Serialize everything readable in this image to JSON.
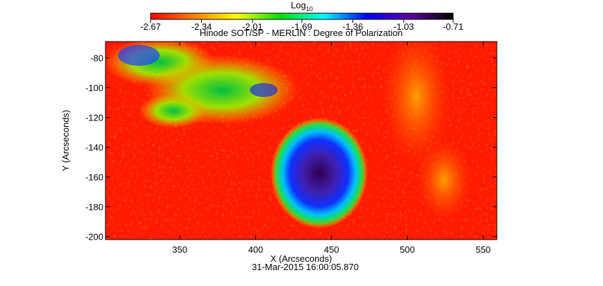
{
  "chart_data": {
    "type": "image",
    "title": "Hinode SOT/SP - MERLIN : Degree of Polarization",
    "xlabel": "X (Arcseconds)",
    "ylabel": "Y (Arcseconds)",
    "date": "31-Mar-2015 16:00:05.870",
    "xlim": [
      301,
      559
    ],
    "xticks": [
      350,
      400,
      450,
      500,
      550
    ],
    "ylim": [
      -202,
      -69
    ],
    "yticks": [
      -80,
      -100,
      -120,
      -140,
      -160,
      -180,
      -200
    ],
    "colorbar": {
      "label": "Log",
      "label_subscript": "10",
      "lim": [
        -2.67,
        -0.71
      ],
      "ticks": [
        -2.67,
        -2.34,
        -2.01,
        -1.69,
        -1.36,
        -1.03,
        -0.71
      ],
      "colors": [
        "#ff0000",
        "#ff8000",
        "#ffff00",
        "#00e000",
        "#00ffff",
        "#0000ff",
        "#6000a0",
        "#000000"
      ]
    }
  }
}
